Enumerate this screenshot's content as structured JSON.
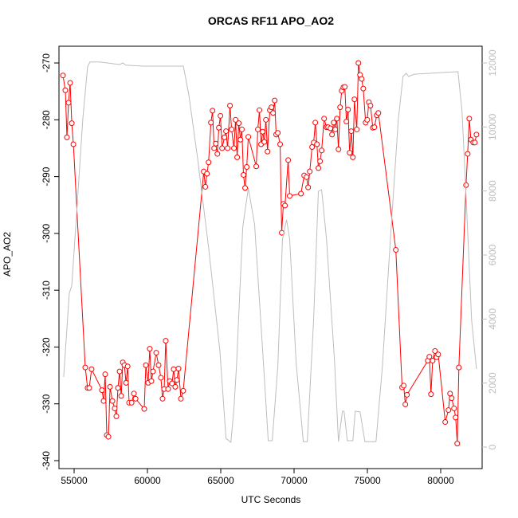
{
  "chart_data": {
    "type": "line",
    "title": "ORCAS RF11 APO_AO2",
    "x_label": "UTC Seconds",
    "y_label": "APO_AO2",
    "xlim": [
      53967,
      82827
    ],
    "xticks": [
      55000,
      60000,
      65000,
      70000,
      75000,
      80000
    ],
    "ylim": [
      -341.4,
      -267.05
    ],
    "yticks": [
      -340,
      -330,
      -320,
      -310,
      -300,
      -290,
      -280,
      -270
    ],
    "y2lim": [
      -672,
      12523
    ],
    "y2ticks": [
      0,
      2000,
      4000,
      6000,
      8000,
      10000,
      12000
    ],
    "series": [
      {
        "color": "#ff0000",
        "markers": true,
        "x": [
          54240,
          54400,
          54510,
          54620,
          54730,
          54840,
          54950,
          55760,
          55920,
          56030,
          56190,
          56900,
          57010,
          57120,
          57230,
          57340,
          57450,
          57610,
          57770,
          57880,
          57990,
          58100,
          58210,
          58320,
          58430,
          58540,
          58650,
          58750,
          58920,
          59080,
          59190,
          59780,
          59890,
          60050,
          60160,
          60270,
          60380,
          60600,
          60760,
          60920,
          61030,
          61140,
          61250,
          61410,
          61520,
          61680,
          61790,
          61900,
          62010,
          62120,
          62280,
          62440,
          63840,
          63950,
          64060,
          64170,
          64330,
          64440,
          64550,
          64660,
          64770,
          64870,
          64980,
          65090,
          65250,
          65360,
          65470,
          65630,
          65740,
          65900,
          66010,
          66120,
          66230,
          66340,
          66440,
          66550,
          66660,
          66770,
          66880,
          67420,
          67530,
          67640,
          67750,
          67860,
          67970,
          68080,
          68190,
          68350,
          68460,
          68570,
          68680,
          68780,
          68890,
          69050,
          69160,
          69270,
          69380,
          69600,
          69700,
          70470,
          70690,
          70850,
          70960,
          71070,
          71230,
          71340,
          71450,
          71560,
          71660,
          71770,
          71880,
          72050,
          72210,
          72320,
          72480,
          72590,
          72700,
          72810,
          72920,
          73030,
          73140,
          73250,
          73360,
          73460,
          73570,
          73680,
          73790,
          73900,
          74010,
          74120,
          74280,
          74390,
          74500,
          74610,
          74720,
          74880,
          74990,
          75100,
          75210,
          75370,
          75480,
          75640,
          75750,
          76940,
          77370,
          77480,
          77590,
          77700,
          79120,
          79230,
          79340,
          79450,
          79610,
          79720,
          79830,
          80310,
          80530,
          80640,
          80750,
          80910,
          81020,
          81130,
          81240,
          81730,
          81840,
          81950,
          82060,
          82220,
          82330,
          82440
        ],
        "values": [
          -272.2,
          -274.8,
          -283.1,
          -277.0,
          -273.5,
          -280.6,
          -284.3,
          -323.6,
          -327.2,
          -327.2,
          -323.9,
          -327.6,
          -329.5,
          -324.8,
          -335.5,
          -335.8,
          -327.0,
          -329.5,
          -330.8,
          -332.2,
          -327.2,
          -324.3,
          -328.6,
          -322.7,
          -323.2,
          -326.3,
          -323.4,
          -329.8,
          -329.8,
          -328.2,
          -329.1,
          -330.9,
          -323.2,
          -326.3,
          -320.3,
          -326.0,
          -324.3,
          -321.0,
          -323.2,
          -325.4,
          -329.1,
          -327.4,
          -318.9,
          -327.4,
          -326.0,
          -326.4,
          -323.9,
          -327.0,
          -325.8,
          -323.8,
          -329.1,
          -327.7,
          -289.1,
          -291.8,
          -289.5,
          -287.5,
          -280.5,
          -278.4,
          -285.0,
          -284.2,
          -286.0,
          -281.4,
          -279.3,
          -285.0,
          -283.1,
          -282.0,
          -285.0,
          -277.5,
          -281.7,
          -285.0,
          -280.0,
          -286.6,
          -280.6,
          -283.5,
          -281.7,
          -289.7,
          -292.0,
          -288.3,
          -283.0,
          -288.2,
          -281.7,
          -278.3,
          -284.3,
          -282.1,
          -283.9,
          -280.0,
          -285.6,
          -278.3,
          -277.8,
          -278.8,
          -276.6,
          -282.6,
          -282.3,
          -284.3,
          -299.9,
          -294.8,
          -295.1,
          -287.1,
          -293.4,
          -293.0,
          -289.8,
          -290.1,
          -291.9,
          -289.1,
          -284.8,
          -284.0,
          -280.5,
          -284.3,
          -288.5,
          -287.3,
          -285.4,
          -279.8,
          -281.3,
          -281.3,
          -281.5,
          -282.6,
          -280.5,
          -281.7,
          -279.8,
          -285.2,
          -277.8,
          -274.9,
          -274.3,
          -274.2,
          -280.3,
          -278.2,
          -285.8,
          -282.0,
          -286.6,
          -276.4,
          -281.7,
          -270.0,
          -272.1,
          -272.8,
          -274.5,
          -280.5,
          -280.0,
          -276.9,
          -277.5,
          -281.4,
          -281.3,
          -279.2,
          -278.8,
          -302.9,
          -327.1,
          -326.8,
          -330.1,
          -328.4,
          -322.4,
          -321.7,
          -328.3,
          -322.4,
          -320.7,
          -321.8,
          -321.3,
          -333.2,
          -331.1,
          -328.2,
          -329.0,
          -330.8,
          -332.4,
          -337.0,
          -323.6,
          -291.5,
          -286.0,
          -279.8,
          -283.5,
          -284.0,
          -284.0,
          -282.6
        ]
      },
      {
        "color": "#bdbdbd",
        "axis": "y2",
        "markers": false,
        "x": [
          54290,
          54670,
          54840,
          55160,
          55600,
          55920,
          56080,
          56740,
          58100,
          58320,
          58540,
          59730,
          62450,
          62830,
          63430,
          64170,
          64940,
          65360,
          65690,
          65900,
          66070,
          66500,
          66880,
          67310,
          67860,
          68240,
          68510,
          68890,
          69210,
          69490,
          69700,
          70140,
          70630,
          70900,
          71340,
          71660,
          71880,
          72210,
          72750,
          73030,
          73300,
          73410,
          73630,
          74010,
          74170,
          74500,
          74830,
          75590,
          76020,
          76570,
          77110,
          77430,
          77650,
          77810,
          78190,
          81180,
          81460,
          81780,
          82110,
          82440
        ],
        "values": [
          2190,
          4800,
          5050,
          7250,
          10280,
          11880,
          12030,
          12030,
          11950,
          12000,
          11930,
          11900,
          11900,
          10980,
          8990,
          6250,
          3010,
          270,
          150,
          1220,
          2510,
          6870,
          8090,
          6950,
          3010,
          200,
          200,
          2510,
          6500,
          7100,
          6500,
          2640,
          170,
          170,
          4010,
          7990,
          8040,
          6500,
          2760,
          170,
          1120,
          1120,
          200,
          200,
          1120,
          1100,
          170,
          170,
          2510,
          6500,
          10230,
          11580,
          11680,
          11580,
          11650,
          11730,
          10480,
          7370,
          3960,
          2440
        ]
      }
    ]
  }
}
